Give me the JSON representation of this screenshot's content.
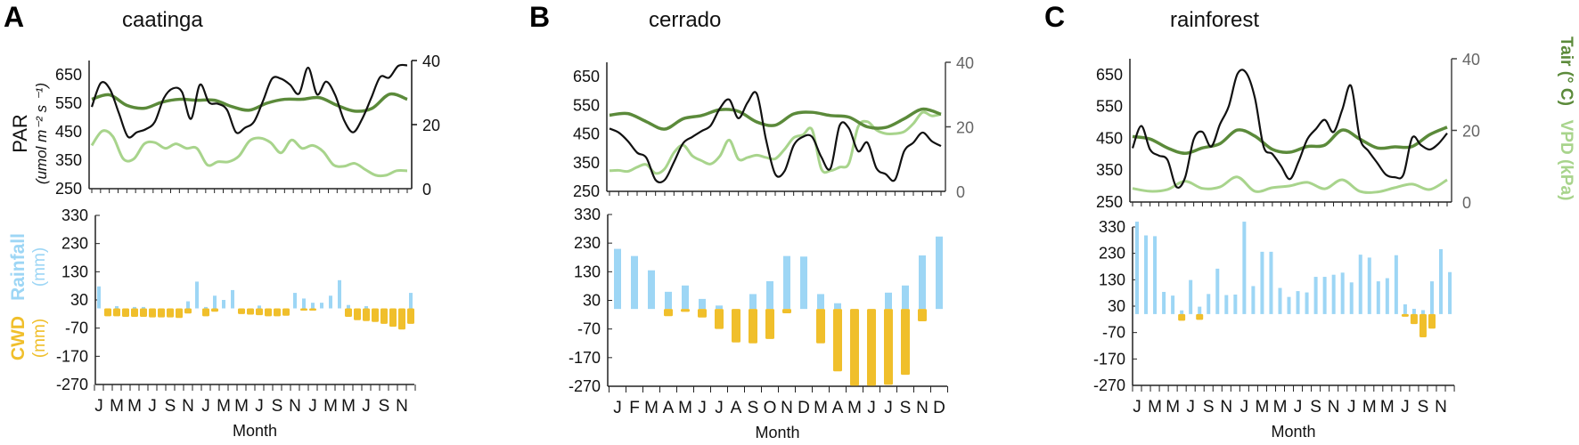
{
  "colors": {
    "par": "#111111",
    "tair": "#5b8a3a",
    "vpd": "#a8d48c",
    "rainfall": "#9dd6f5",
    "cwd": "#f0bf2b",
    "axis_grey": "#666666"
  },
  "left_labels": {
    "par": "PAR",
    "par_unit": "(umol m⁻² s ⁻¹)",
    "rainfall": "Rainfall",
    "rainfall_unit": "(mm)",
    "cwd": "CWD",
    "cwd_unit": "(mm)"
  },
  "right_labels": {
    "tair": "Tair (° C)",
    "vpd": "VPD (kPa)"
  },
  "chart_data": [
    {
      "panel": "A",
      "title": "caatinga",
      "type": "line+bar",
      "xlabel": "Month",
      "top": {
        "ylim": [
          250,
          700
        ],
        "yticks": [
          250,
          350,
          450,
          550,
          650
        ],
        "y2lim": [
          0,
          40
        ],
        "y2ticks": [
          0,
          20,
          40
        ],
        "y2_color": "#111111",
        "par": [
          537,
          621,
          600,
          516,
          433,
          448,
          459,
          485,
          568,
          602,
          590,
          495,
          615,
          553,
          548,
          527,
          448,
          464,
          485,
          558,
          636,
          636,
          615,
          584,
          675,
          581,
          626,
          579,
          490,
          448,
          495,
          568,
          642,
          640,
          681,
          683
        ],
        "tair": [
          27.9,
          29.3,
          26,
          25.1,
          27,
          27.9,
          27.6,
          27.6,
          25.6,
          24.5,
          26.7,
          27.9,
          27.9,
          28.4,
          26,
          24.2,
          25.1,
          29.5,
          27.9
        ],
        "vpd": [
          13.5,
          18,
          16.3,
          9.3,
          9.3,
          14,
          14.4,
          12.6,
          14,
          12.6,
          12.6,
          7.4,
          8.4,
          8.4,
          10.2,
          14.9,
          15.8,
          14.4,
          11.2,
          15.2,
          12.6,
          13.5,
          11.6,
          7.4,
          7,
          7.9,
          6,
          4.2,
          4.2,
          5.6,
          5.6
        ]
      },
      "bottom": {
        "ylim": [
          -270,
          330
        ],
        "yticks": [
          -270,
          -170,
          -70,
          30,
          130,
          230,
          330
        ],
        "rainfall": [
          78,
          0,
          8,
          0,
          5,
          5,
          0,
          0,
          0,
          0,
          25,
          95,
          5,
          45,
          30,
          65,
          0,
          0,
          10,
          0,
          0,
          0,
          55,
          35,
          20,
          20,
          45,
          100,
          12,
          0,
          8,
          0,
          0,
          0,
          0,
          55
        ],
        "cwd": [
          0,
          -28,
          -28,
          -30,
          -30,
          -30,
          -32,
          -32,
          -32,
          -34,
          -18,
          0,
          -28,
          -12,
          0,
          0,
          -20,
          -22,
          -24,
          -28,
          -28,
          -26,
          0,
          -8,
          -8,
          0,
          0,
          0,
          -30,
          -42,
          -45,
          -48,
          -55,
          -65,
          -75,
          -55
        ],
        "month_labels": [
          "J",
          "M",
          "M",
          "J",
          "S",
          "N",
          "J",
          "M",
          "M",
          "J",
          "S",
          "N",
          "J",
          "M",
          "M",
          "J",
          "S",
          "N"
        ],
        "label_every": 2
      }
    },
    {
      "panel": "B",
      "title": "cerrado",
      "type": "line+bar",
      "xlabel": "Month",
      "top": {
        "ylim": [
          250,
          700
        ],
        "yticks": [
          250,
          350,
          450,
          550,
          650
        ],
        "y2lim": [
          0,
          40
        ],
        "y2ticks": [
          0,
          20,
          40
        ],
        "y2_color": "#666666",
        "par": [
          469,
          455,
          425,
          385,
          367,
          290,
          290,
          352,
          418,
          440,
          460,
          480,
          540,
          570,
          505,
          560,
          590,
          430,
          310,
          320,
          410,
          440,
          440,
          370,
          330,
          480,
          470,
          390,
          420,
          330,
          310,
          290,
          390,
          420,
          455,
          425,
          408
        ],
        "tair": [
          23.6,
          24.1,
          21.6,
          19.3,
          22.5,
          23.5,
          25.3,
          24.8,
          21.5,
          20.5,
          24,
          24.5,
          23.5,
          23,
          20,
          19.8,
          22.5,
          25.5,
          23.9
        ],
        "vpd": [
          6.4,
          6.5,
          6.2,
          7.5,
          8.3,
          5.6,
          7,
          12,
          14.3,
          11,
          9.5,
          8.5,
          11,
          15.9,
          10,
          10.5,
          11.2,
          10.5,
          10.1,
          13,
          16.6,
          17.5,
          19.1,
          7,
          6.4,
          7.5,
          8.7,
          20,
          21.6,
          19,
          17.9,
          17.9,
          18.5,
          21,
          24.5,
          23.4,
          23.9
        ]
      },
      "bottom": {
        "ylim": [
          -270,
          330
        ],
        "yticks": [
          -270,
          -170,
          -70,
          30,
          130,
          230,
          330
        ],
        "rainfall": [
          210,
          185,
          135,
          60,
          82,
          35,
          12,
          0,
          52,
          97,
          185,
          183,
          52,
          20,
          0,
          0,
          57,
          82,
          187,
          253
        ],
        "cwd": [
          0,
          0,
          0,
          -25,
          -10,
          -30,
          -70,
          -117,
          -120,
          -105,
          -15,
          0,
          -120,
          -218,
          -268,
          -268,
          -265,
          -230,
          -43,
          0
        ],
        "month_labels": [
          "J",
          "F",
          "M",
          "A",
          "M",
          "J",
          "J",
          "A",
          "S",
          "O",
          "N",
          "D",
          "M",
          "A",
          "M",
          "J",
          "J",
          "S",
          "N",
          "D"
        ],
        "label_every": 1
      }
    },
    {
      "panel": "C",
      "title": "rainforest",
      "type": "line+bar",
      "xlabel": "Month",
      "top": {
        "ylim": [
          250,
          700
        ],
        "yticks": [
          250,
          350,
          450,
          550,
          650
        ],
        "y2lim": [
          0,
          40
        ],
        "y2ticks": [
          0,
          20,
          40
        ],
        "y2_color": "#666666",
        "par": [
          419,
          489,
          415,
          396,
          382,
          298,
          326,
          447,
          470,
          424,
          494,
          550,
          652,
          656,
          577,
          424,
          401,
          363,
          322,
          377,
          447,
          480,
          508,
          470,
          540,
          615,
          452,
          410,
          373,
          336,
          328,
          336,
          452,
          429,
          415,
          433,
          466
        ],
        "tair": [
          18.3,
          17.6,
          15.1,
          13.6,
          15.1,
          16.3,
          20.1,
          18.4,
          14.7,
          13.9,
          15.5,
          15.9,
          20.1,
          17.6,
          15.1,
          15.4,
          15.5,
          18.8,
          20.9
        ],
        "vpd": [
          3.8,
          3.0,
          3.5,
          5.8,
          3.8,
          4.2,
          7.0,
          3.0,
          4.0,
          4.5,
          5.5,
          3.7,
          6.2,
          3.0,
          2.8,
          4.0,
          5.0,
          3.5,
          6.2
        ]
      },
      "bottom": {
        "ylim": [
          -270,
          330
        ],
        "yticks": [
          -270,
          -170,
          -70,
          30,
          130,
          230,
          330
        ],
        "rainfall": [
          350,
          298,
          295,
          84,
          70,
          14,
          129,
          28,
          76,
          172,
          72,
          74,
          350,
          106,
          236,
          236,
          99,
          65,
          87,
          82,
          141,
          141,
          149,
          157,
          120,
          225,
          214,
          124,
          136,
          223,
          37,
          20,
          15,
          124,
          246,
          159
        ],
        "cwd": [
          0,
          0,
          0,
          0,
          0,
          -25,
          0,
          -22,
          0,
          0,
          0,
          0,
          0,
          0,
          0,
          0,
          0,
          0,
          0,
          0,
          0,
          0,
          0,
          0,
          0,
          0,
          0,
          0,
          0,
          0,
          -10,
          -38,
          -88,
          -55,
          0,
          0
        ],
        "month_labels": [
          "J",
          "M",
          "M",
          "J",
          "S",
          "N",
          "J",
          "M",
          "M",
          "J",
          "S",
          "N",
          "J",
          "M",
          "M",
          "J",
          "S",
          "N"
        ],
        "label_every": 2
      }
    }
  ]
}
